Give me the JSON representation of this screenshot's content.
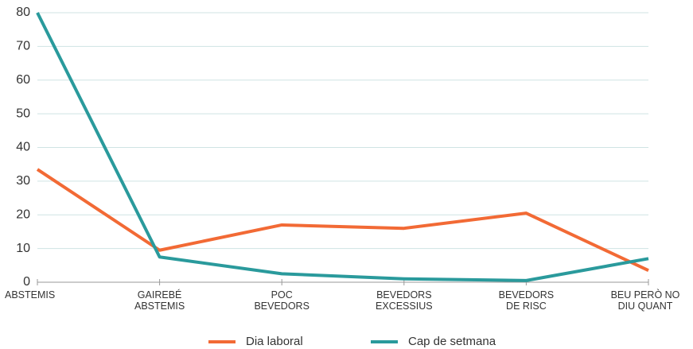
{
  "chart_data": {
    "type": "line",
    "categories": [
      "ABSTEMIS",
      "GAIREBÉ\nABSTEMIS",
      "POC\nBEVEDORS",
      "BEVEDORS\nEXCESSIUS",
      "BEVEDORS\nDE RISC",
      "BEU PERÒ NO\nDIU QUANT"
    ],
    "series": [
      {
        "name": "Dia laboral",
        "color": "#f26a35",
        "values": [
          33.5,
          9.5,
          17,
          16,
          20.5,
          3.5
        ]
      },
      {
        "name": "Cap de setmana",
        "color": "#2a9a9c",
        "values": [
          80,
          7.5,
          2.5,
          1,
          0.5,
          7
        ]
      }
    ],
    "ylim": [
      0,
      80
    ],
    "yticks": [
      0,
      10,
      20,
      30,
      40,
      50,
      60,
      70,
      80
    ],
    "grid": true,
    "legend": "bottom"
  }
}
